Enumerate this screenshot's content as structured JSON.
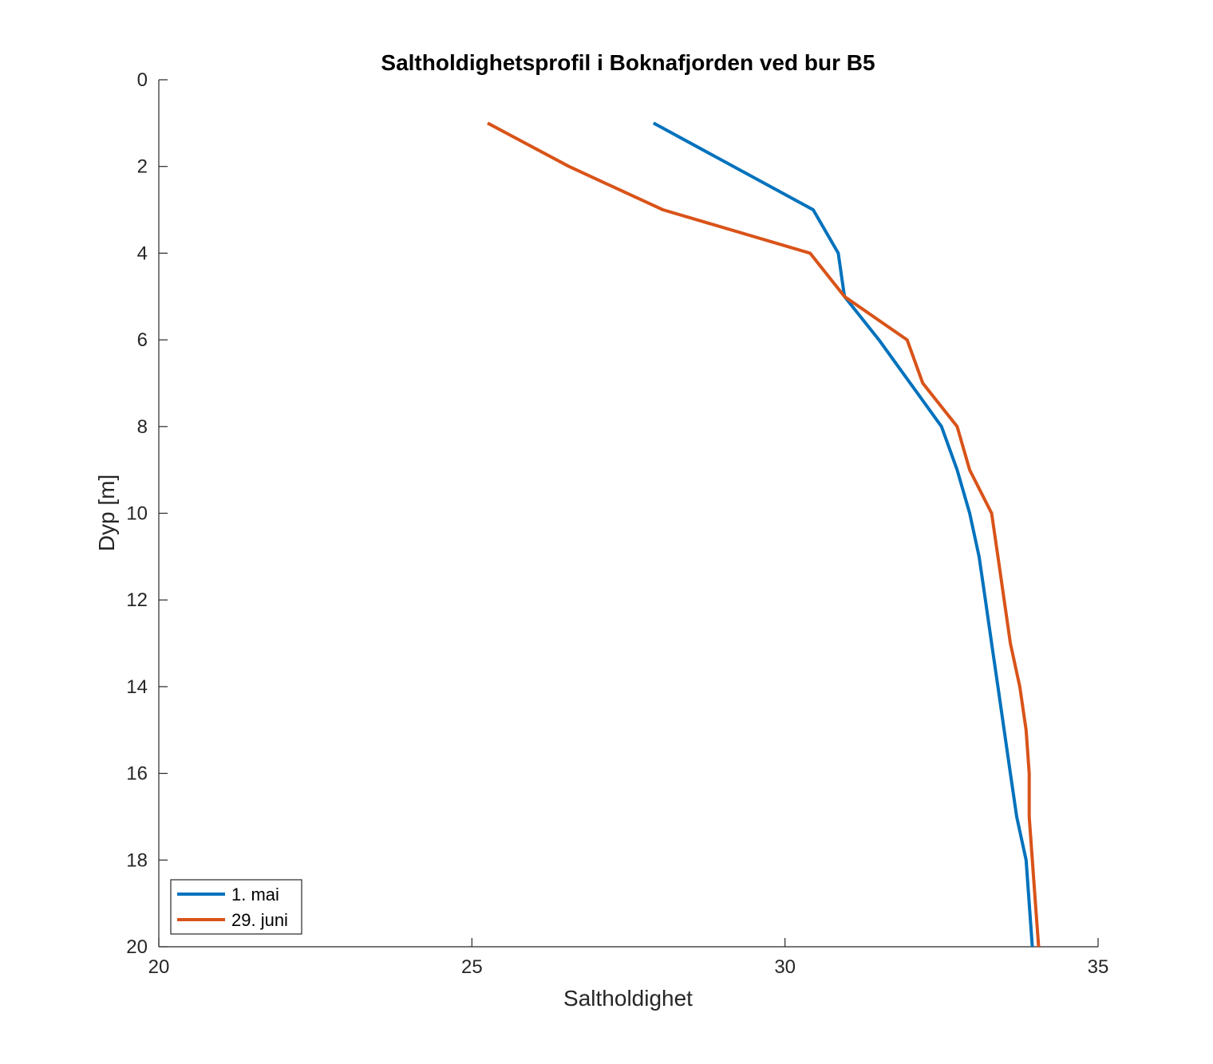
{
  "chart_data": {
    "type": "line",
    "title": "Saltholdighetsprofil i Boknafjorden ved bur B5",
    "xlabel": "Saltholdighet",
    "ylabel": "Dyp [m]",
    "xlim": [
      20,
      35
    ],
    "ylim": [
      0,
      20
    ],
    "y_reversed": true,
    "grid": false,
    "legend_position": "bottom-left",
    "x_ticks": [
      20,
      25,
      30,
      35
    ],
    "y_ticks": [
      0,
      2,
      4,
      6,
      8,
      10,
      12,
      14,
      16,
      18,
      20
    ],
    "series": [
      {
        "name": "1. mai",
        "color": "#0072BD",
        "points": [
          [
            27.9,
            1
          ],
          [
            30.45,
            3
          ],
          [
            30.85,
            4
          ],
          [
            30.95,
            5
          ],
          [
            31.5,
            6
          ],
          [
            32.0,
            7
          ],
          [
            32.5,
            8
          ],
          [
            32.75,
            9
          ],
          [
            32.95,
            10
          ],
          [
            33.1,
            11
          ],
          [
            33.2,
            12
          ],
          [
            33.3,
            13
          ],
          [
            33.4,
            14
          ],
          [
            33.5,
            15
          ],
          [
            33.6,
            16
          ],
          [
            33.7,
            17
          ],
          [
            33.85,
            18
          ],
          [
            33.9,
            19
          ],
          [
            33.95,
            20
          ]
        ]
      },
      {
        "name": "29. juni",
        "color": "#D95319",
        "points": [
          [
            25.25,
            1
          ],
          [
            26.55,
            2
          ],
          [
            28.05,
            3
          ],
          [
            30.4,
            4
          ],
          [
            30.95,
            5
          ],
          [
            31.95,
            6
          ],
          [
            32.2,
            7
          ],
          [
            32.75,
            8
          ],
          [
            32.95,
            9
          ],
          [
            33.3,
            10
          ],
          [
            33.4,
            11
          ],
          [
            33.5,
            12
          ],
          [
            33.6,
            13
          ],
          [
            33.75,
            14
          ],
          [
            33.85,
            15
          ],
          [
            33.9,
            16
          ],
          [
            33.9,
            17
          ],
          [
            33.95,
            18
          ],
          [
            34.0,
            19
          ],
          [
            34.05,
            20
          ]
        ]
      }
    ]
  }
}
